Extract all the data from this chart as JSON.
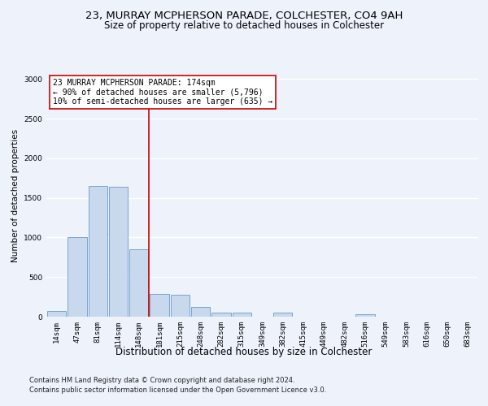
{
  "title1": "23, MURRAY MCPHERSON PARADE, COLCHESTER, CO4 9AH",
  "title2": "Size of property relative to detached houses in Colchester",
  "xlabel": "Distribution of detached houses by size in Colchester",
  "ylabel": "Number of detached properties",
  "categories": [
    "14sqm",
    "47sqm",
    "81sqm",
    "114sqm",
    "148sqm",
    "181sqm",
    "215sqm",
    "248sqm",
    "282sqm",
    "315sqm",
    "349sqm",
    "382sqm",
    "415sqm",
    "449sqm",
    "482sqm",
    "516sqm",
    "549sqm",
    "583sqm",
    "616sqm",
    "650sqm",
    "683sqm"
  ],
  "values": [
    70,
    1000,
    1650,
    1640,
    850,
    285,
    280,
    120,
    55,
    50,
    0,
    55,
    0,
    0,
    0,
    30,
    0,
    0,
    0,
    0,
    0
  ],
  "bar_color": "#c8d9ee",
  "bar_edge_color": "#6699cc",
  "annotation_text": "23 MURRAY MCPHERSON PARADE: 174sqm\n← 90% of detached houses are smaller (5,796)\n10% of semi-detached houses are larger (635) →",
  "footnote1": "Contains HM Land Registry data © Crown copyright and database right 2024.",
  "footnote2": "Contains public sector information licensed under the Open Government Licence v3.0.",
  "ylim": [
    0,
    3050
  ],
  "yticks": [
    0,
    500,
    1000,
    1500,
    2000,
    2500,
    3000
  ],
  "background_color": "#eef2fb",
  "plot_bg_color": "#eef2fb",
  "grid_color": "#ffffff",
  "title1_fontsize": 9.5,
  "title2_fontsize": 8.5,
  "xlabel_fontsize": 8.5,
  "ylabel_fontsize": 7.5,
  "tick_fontsize": 6.5,
  "annotation_fontsize": 7,
  "footnote_fontsize": 6,
  "red_line_color": "#cc0000",
  "red_line_x": 4.5
}
